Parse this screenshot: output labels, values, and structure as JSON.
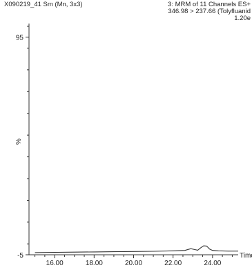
{
  "header": {
    "sample": "X090219_41 Sm (Mn, 3x3)",
    "function": "3: MRM of 11 Channels ES+",
    "transition": "346.98 > 237.66 (Tolyfluanid",
    "intensity": "1.20e"
  },
  "chart_data": {
    "type": "line",
    "title": "",
    "xlabel": "Time",
    "ylabel": "%",
    "xlim": [
      14.7,
      25.3
    ],
    "ylim": [
      -5,
      100
    ],
    "x_ticks": [
      "16.00",
      "18.00",
      "20.00",
      "22.00",
      "24.00"
    ],
    "x_tick_values": [
      16,
      18,
      20,
      22,
      24
    ],
    "y_ticks": [
      "95",
      "-5"
    ],
    "y_tick_values": [
      95,
      -5
    ],
    "grid": false,
    "series": [
      {
        "name": "",
        "color": "#333333",
        "x": [
          15.0,
          16.0,
          17.0,
          18.0,
          19.0,
          20.0,
          21.0,
          22.0,
          22.6,
          22.9,
          23.1,
          23.25,
          23.4,
          23.55,
          23.7,
          23.85,
          24.0,
          24.3,
          24.8,
          25.3
        ],
        "y": [
          -4.0,
          -3.9,
          -3.8,
          -3.7,
          -3.6,
          -3.5,
          -3.4,
          -3.2,
          -3.0,
          -2.2,
          -2.6,
          -2.9,
          -1.8,
          -0.9,
          -1.0,
          -2.4,
          -3.0,
          -3.2,
          -3.3,
          -3.3
        ]
      }
    ]
  }
}
